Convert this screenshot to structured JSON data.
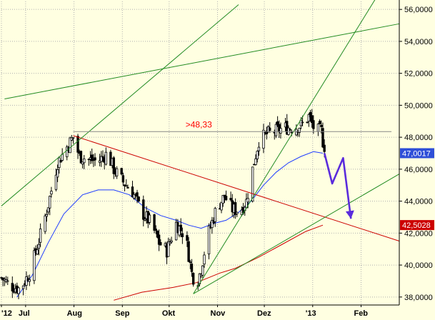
{
  "chart_data": {
    "type": "candlestick",
    "ylim": [
      37.5,
      56.5
    ],
    "y_ticks": [
      "38,0000",
      "40,0000",
      "42,0000",
      "44,0000",
      "46,0000",
      "48,0000",
      "50,0000",
      "52,0000",
      "54,0000",
      "56,0000"
    ],
    "x_ticks": [
      {
        "label": "'12",
        "t": 0.0
      },
      {
        "label": "Jul",
        "t": 15.5
      },
      {
        "label": "Aug",
        "t": 46.5
      },
      {
        "label": "Sep",
        "t": 77.5
      },
      {
        "label": "Okt",
        "t": 107.5
      },
      {
        "label": "Nov",
        "t": 138.5
      },
      {
        "label": "Dez",
        "t": 168.5
      },
      {
        "label": "'13",
        "t": 199.5
      },
      {
        "label": "Feb",
        "t": 230.5
      }
    ],
    "x_range_days": [
      0,
      255
    ],
    "price_keypoints": [
      [
        0,
        39.2
      ],
      [
        6,
        38.7
      ],
      [
        12,
        38.5
      ],
      [
        18,
        39.5
      ],
      [
        24,
        41.5
      ],
      [
        30,
        43.8
      ],
      [
        36,
        46.4
      ],
      [
        42,
        47.4
      ],
      [
        46,
        48.0
      ],
      [
        50,
        46.8
      ],
      [
        56,
        46.6
      ],
      [
        62,
        46.5
      ],
      [
        68,
        47.0
      ],
      [
        72,
        46.0
      ],
      [
        78,
        45.2
      ],
      [
        84,
        44.6
      ],
      [
        90,
        43.3
      ],
      [
        96,
        42.6
      ],
      [
        101,
        41.4
      ],
      [
        106,
        40.9
      ],
      [
        112,
        42.6
      ],
      [
        118,
        41.8
      ],
      [
        122,
        39.5
      ],
      [
        125,
        38.7
      ],
      [
        128,
        39.8
      ],
      [
        132,
        41.8
      ],
      [
        138,
        43.6
      ],
      [
        143,
        44.3
      ],
      [
        148,
        43.5
      ],
      [
        153,
        43.4
      ],
      [
        157,
        44.0
      ],
      [
        161,
        46.0
      ],
      [
        165,
        47.8
      ],
      [
        170,
        48.2
      ],
      [
        176,
        48.4
      ],
      [
        182,
        48.6
      ],
      [
        188,
        48.6
      ],
      [
        193,
        48.8
      ],
      [
        197,
        49.3
      ],
      [
        201,
        48.4
      ],
      [
        205,
        48.4
      ],
      [
        207,
        47.1
      ]
    ],
    "sma_fast_keypoints": [
      [
        10,
        38.0
      ],
      [
        20,
        39.4
      ],
      [
        30,
        41.4
      ],
      [
        40,
        43.2
      ],
      [
        52,
        44.4
      ],
      [
        62,
        44.7
      ],
      [
        72,
        44.7
      ],
      [
        82,
        44.4
      ],
      [
        92,
        43.6
      ],
      [
        102,
        43.1
      ],
      [
        112,
        42.8
      ],
      [
        120,
        42.5
      ],
      [
        128,
        42.3
      ],
      [
        136,
        42.6
      ],
      [
        144,
        42.8
      ],
      [
        152,
        43.3
      ],
      [
        160,
        44.0
      ],
      [
        168,
        45.0
      ],
      [
        176,
        45.8
      ],
      [
        184,
        46.4
      ],
      [
        192,
        46.8
      ],
      [
        200,
        47.1
      ],
      [
        206,
        47.0
      ]
    ],
    "sma_slow_keypoints": [
      [
        72,
        37.8
      ],
      [
        90,
        38.3
      ],
      [
        110,
        38.6
      ],
      [
        125,
        38.9
      ],
      [
        140,
        39.5
      ],
      [
        150,
        39.8
      ],
      [
        165,
        40.5
      ],
      [
        180,
        41.3
      ],
      [
        195,
        42.1
      ],
      [
        206,
        42.5
      ]
    ],
    "trendlines": [
      {
        "color": "#cc0000",
        "from": [
          46,
          48.1
        ],
        "to": [
          255,
          41.5
        ]
      },
      {
        "color": "#228b22",
        "from": [
          0,
          43.7
        ],
        "to": [
          152,
          56.3
        ]
      },
      {
        "color": "#228b22",
        "from": [
          2,
          50.4
        ],
        "to": [
          255,
          55.1
        ]
      },
      {
        "color": "#228b22",
        "from": [
          123,
          38.2
        ],
        "to": [
          240,
          56.7
        ]
      },
      {
        "color": "#228b22",
        "from": [
          123,
          38.2
        ],
        "to": [
          255,
          45.7
        ]
      },
      {
        "color": "#888888",
        "from": [
          46,
          48.35
        ],
        "to": [
          250,
          48.35
        ]
      }
    ],
    "annotation": {
      "text": ">48,33",
      "color": "#ff0000",
      "at": [
        118,
        48.6
      ]
    },
    "forecast_path": {
      "color": "#5a2bdc",
      "points": [
        [
          207,
          47.0
        ],
        [
          212,
          45.1
        ],
        [
          219,
          46.7
        ],
        [
          224,
          42.9
        ]
      ]
    },
    "price_badges": [
      {
        "text": "47,0017",
        "value": 47.0017,
        "color": "#2f4fd8"
      },
      {
        "text": "42,5028",
        "value": 42.5028,
        "color": "#cc0000"
      }
    ],
    "colors": {
      "background": "#ffffe1",
      "candles": "#000000",
      "sma_fast": "#1e3cff",
      "sma_slow": "#cc0000",
      "grid": "#b0b0b0"
    },
    "grid": true
  }
}
